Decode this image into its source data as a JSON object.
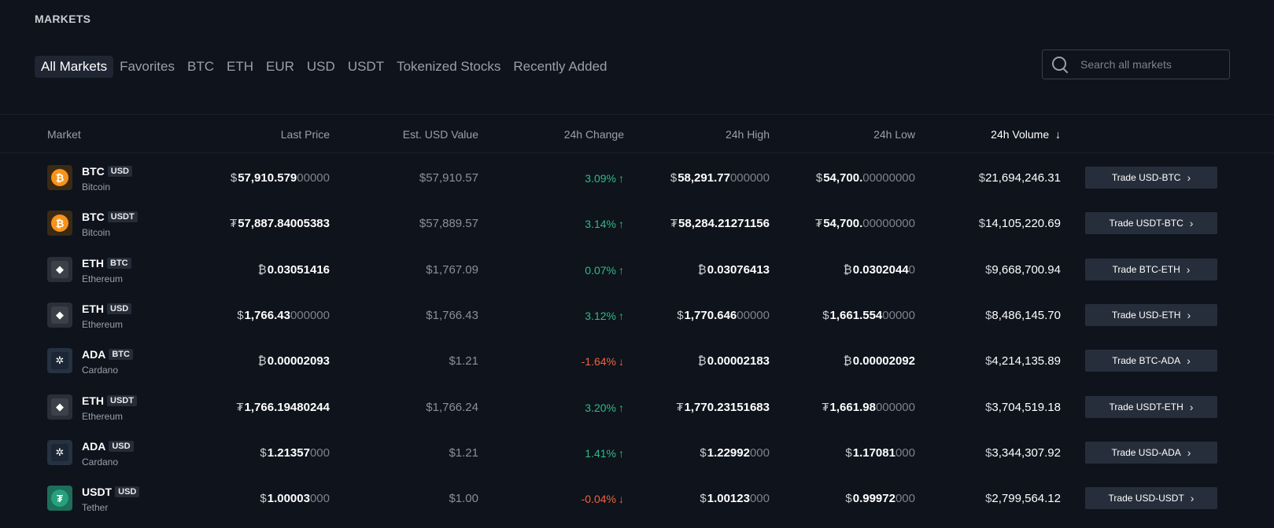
{
  "title": "MARKETS",
  "tabs": [
    {
      "label": "All Markets",
      "active": true
    },
    {
      "label": "Favorites",
      "active": false
    },
    {
      "label": "BTC",
      "active": false
    },
    {
      "label": "ETH",
      "active": false
    },
    {
      "label": "EUR",
      "active": false
    },
    {
      "label": "USD",
      "active": false
    },
    {
      "label": "USDT",
      "active": false
    },
    {
      "label": "Tokenized Stocks",
      "active": false
    },
    {
      "label": "Recently Added",
      "active": false
    }
  ],
  "search": {
    "placeholder": "Search all markets",
    "value": "",
    "icon": "search-icon"
  },
  "columns": {
    "market": "Market",
    "last_price": "Last Price",
    "usd_value": "Est. USD Value",
    "change": "24h Change",
    "high": "24h High",
    "low": "24h Low",
    "volume": "24h Volume",
    "volume_sort_icon": "arrow-down-icon"
  },
  "colors": {
    "positive": "#2ebd85",
    "negative": "#f0643c",
    "background": "#0e131c"
  },
  "rows": [
    {
      "symbol": "BTC",
      "quote": "USD",
      "name": "Bitcoin",
      "icon": "bitcoin-icon",
      "price": {
        "cur": "$",
        "main": "57,910.579",
        "dim": "00000"
      },
      "usd_value": "$57,910.57",
      "change": "3.09%",
      "dir": "up",
      "high": {
        "cur": "$",
        "main": "58,291.77",
        "dim": "000000"
      },
      "low": {
        "cur": "$",
        "main": "54,700.",
        "dim": "00000000"
      },
      "volume": {
        "cur": "$",
        "main": "21,694,246.31",
        "dim": ""
      },
      "trade": "Trade USD-BTC"
    },
    {
      "symbol": "BTC",
      "quote": "USDT",
      "name": "Bitcoin",
      "icon": "bitcoin-icon",
      "price": {
        "cur": "₮",
        "main": "57,887.84005383",
        "dim": ""
      },
      "usd_value": "$57,889.57",
      "change": "3.14%",
      "dir": "up",
      "high": {
        "cur": "₮",
        "main": "58,284.21271156",
        "dim": ""
      },
      "low": {
        "cur": "₮",
        "main": "54,700.",
        "dim": "00000000"
      },
      "volume": {
        "cur": "$",
        "main": "14,105,220.69",
        "dim": ""
      },
      "trade": "Trade USDT-BTC"
    },
    {
      "symbol": "ETH",
      "quote": "BTC",
      "name": "Ethereum",
      "icon": "ethereum-icon",
      "price": {
        "cur": "₿",
        "main": "0.03051416",
        "dim": ""
      },
      "usd_value": "$1,767.09",
      "change": "0.07%",
      "dir": "up",
      "high": {
        "cur": "₿",
        "main": "0.03076413",
        "dim": ""
      },
      "low": {
        "cur": "₿",
        "main": "0.0302044",
        "dim": "0"
      },
      "volume": {
        "cur": "$",
        "main": "9,668,700.94",
        "dim": ""
      },
      "trade": "Trade BTC-ETH"
    },
    {
      "symbol": "ETH",
      "quote": "USD",
      "name": "Ethereum",
      "icon": "ethereum-icon",
      "price": {
        "cur": "$",
        "main": "1,766.43",
        "dim": "000000"
      },
      "usd_value": "$1,766.43",
      "change": "3.12%",
      "dir": "up",
      "high": {
        "cur": "$",
        "main": "1,770.646",
        "dim": "00000"
      },
      "low": {
        "cur": "$",
        "main": "1,661.554",
        "dim": "00000"
      },
      "volume": {
        "cur": "$",
        "main": "8,486,145.7",
        "dim": "0"
      },
      "trade": "Trade USD-ETH"
    },
    {
      "symbol": "ADA",
      "quote": "BTC",
      "name": "Cardano",
      "icon": "cardano-icon",
      "price": {
        "cur": "₿",
        "main": "0.00002093",
        "dim": ""
      },
      "usd_value": "$1.21",
      "change": "-1.64%",
      "dir": "down",
      "high": {
        "cur": "₿",
        "main": "0.00002183",
        "dim": ""
      },
      "low": {
        "cur": "₿",
        "main": "0.00002092",
        "dim": ""
      },
      "volume": {
        "cur": "$",
        "main": "4,214,135.89",
        "dim": ""
      },
      "trade": "Trade BTC-ADA"
    },
    {
      "symbol": "ETH",
      "quote": "USDT",
      "name": "Ethereum",
      "icon": "ethereum-icon",
      "price": {
        "cur": "₮",
        "main": "1,766.19480244",
        "dim": ""
      },
      "usd_value": "$1,766.24",
      "change": "3.20%",
      "dir": "up",
      "high": {
        "cur": "₮",
        "main": "1,770.23151683",
        "dim": ""
      },
      "low": {
        "cur": "₮",
        "main": "1,661.98",
        "dim": "000000"
      },
      "volume": {
        "cur": "$",
        "main": "3,704,519.18",
        "dim": ""
      },
      "trade": "Trade USDT-ETH"
    },
    {
      "symbol": "ADA",
      "quote": "USD",
      "name": "Cardano",
      "icon": "cardano-icon",
      "price": {
        "cur": "$",
        "main": "1.21357",
        "dim": "000"
      },
      "usd_value": "$1.21",
      "change": "1.41%",
      "dir": "up",
      "high": {
        "cur": "$",
        "main": "1.22992",
        "dim": "000"
      },
      "low": {
        "cur": "$",
        "main": "1.17081",
        "dim": "000"
      },
      "volume": {
        "cur": "$",
        "main": "3,344,307.92",
        "dim": ""
      },
      "trade": "Trade USD-ADA"
    },
    {
      "symbol": "USDT",
      "quote": "USD",
      "name": "Tether",
      "icon": "tether-icon",
      "price": {
        "cur": "$",
        "main": "1.00003",
        "dim": "000"
      },
      "usd_value": "$1.00",
      "change": "-0.04%",
      "dir": "down",
      "high": {
        "cur": "$",
        "main": "1.00123",
        "dim": "000"
      },
      "low": {
        "cur": "$",
        "main": "0.99972",
        "dim": "000"
      },
      "volume": {
        "cur": "$",
        "main": "2,799,564.12",
        "dim": ""
      },
      "trade": "Trade USD-USDT"
    }
  ]
}
